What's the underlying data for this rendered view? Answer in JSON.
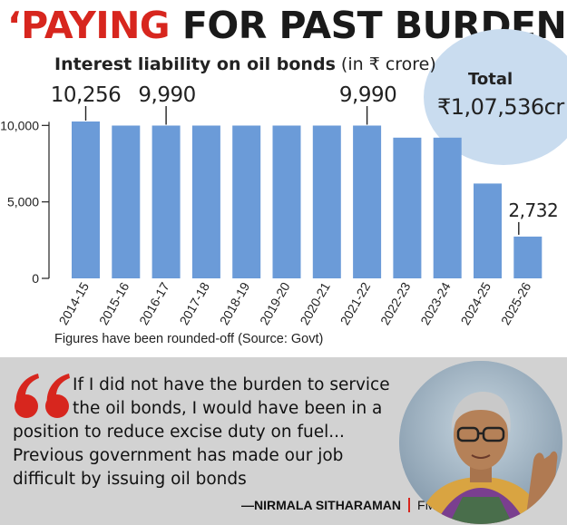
{
  "headline": {
    "red_part": "‘PAYING",
    "black_part": " FOR PAST BURDEN’"
  },
  "subtitle": {
    "bold": "Interest liability on oil bonds",
    "unit": " (in ₹ crore)"
  },
  "total": {
    "label": "Total",
    "value": "₹1,07,536cr"
  },
  "chart_data": {
    "type": "bar",
    "title": "Interest liability on oil bonds",
    "ylabel": "in ₹ crore",
    "categories": [
      "2014-15",
      "2015-16",
      "2016-17",
      "2017-18",
      "2018-19",
      "2019-20",
      "2020-21",
      "2021-22",
      "2022-23",
      "2023-24",
      "2024-25",
      "2025-26"
    ],
    "values": [
      10256,
      9990,
      9990,
      9990,
      9990,
      9990,
      9990,
      9990,
      9200,
      9200,
      6200,
      2732
    ],
    "data_labels": [
      {
        "index": 0,
        "text": "10,256"
      },
      {
        "index": 2,
        "text": "9,990"
      },
      {
        "index": 7,
        "text": "9,990"
      },
      {
        "index": 11,
        "text": "2,732"
      }
    ],
    "yticks": [
      {
        "value": 0,
        "label": "0"
      },
      {
        "value": 5000,
        "label": "5,000"
      },
      {
        "value": 10000,
        "label": "10,000"
      }
    ],
    "ylim": [
      0,
      10256
    ],
    "grid": false,
    "bar_color": "#6b9bd8"
  },
  "footnote": "Figures have been rounded-off (Source: Govt)",
  "quote": {
    "lines": [
      "If I did not have the burden to service",
      "the oil bonds, I would have been in a",
      "position to reduce excise duty on fuel...",
      "Previous government has made our job",
      "difficult by issuing oil bonds"
    ],
    "mark_icon": "opening-quote-icon",
    "mark_color": "#d7261e"
  },
  "attribution": {
    "name": "—NIRMALA SITHARAMAN",
    "role": "FM"
  },
  "colors": {
    "accent": "#d7261e",
    "panel": "#d2d2d2",
    "total_bubble": "#c9dcef"
  }
}
